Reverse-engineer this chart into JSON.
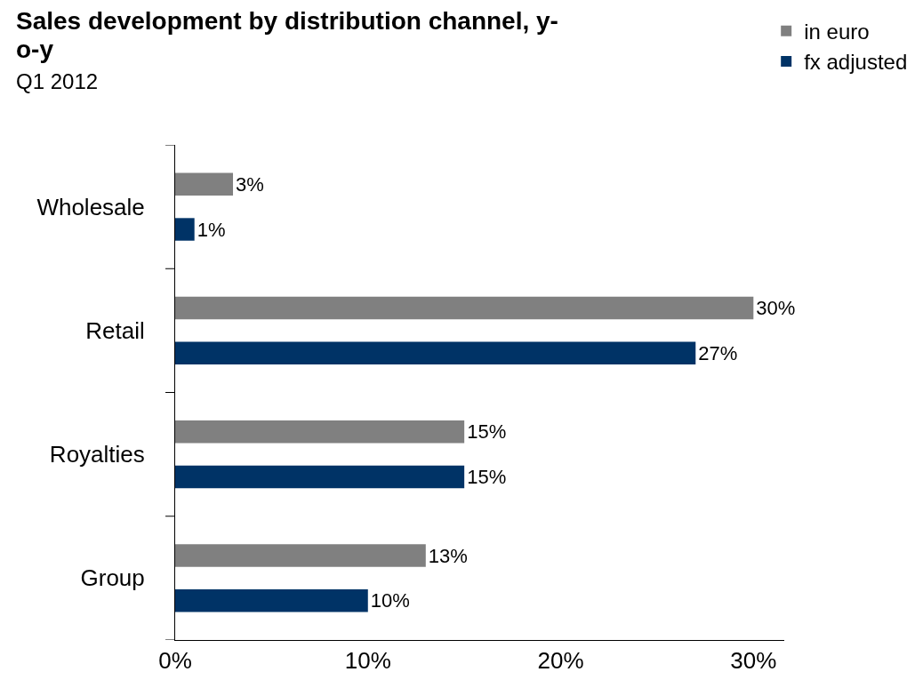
{
  "chart_data": {
    "type": "bar",
    "orientation": "horizontal",
    "title": "Sales development by distribution channel, y-o-y",
    "subtitle": "Q1 2012",
    "categories": [
      "Wholesale",
      "Retail",
      "Royalties",
      "Group"
    ],
    "series": [
      {
        "name": "in euro",
        "color": "#808080",
        "values": [
          3,
          30,
          15,
          13
        ],
        "value_labels": [
          "3%",
          "30%",
          "15%",
          "13%"
        ]
      },
      {
        "name": "fx adjusted",
        "color": "#003366",
        "values": [
          1,
          27,
          15,
          10
        ],
        "value_labels": [
          "1%",
          "27%",
          "15%",
          "10%"
        ]
      }
    ],
    "xlim": [
      0,
      31.6
    ],
    "xticks": [
      {
        "value": 0,
        "label": "0%"
      },
      {
        "value": 10,
        "label": "10%"
      },
      {
        "value": 20,
        "label": "20%"
      },
      {
        "value": 30,
        "label": "30%"
      }
    ],
    "grid": false,
    "legend": "top right"
  }
}
